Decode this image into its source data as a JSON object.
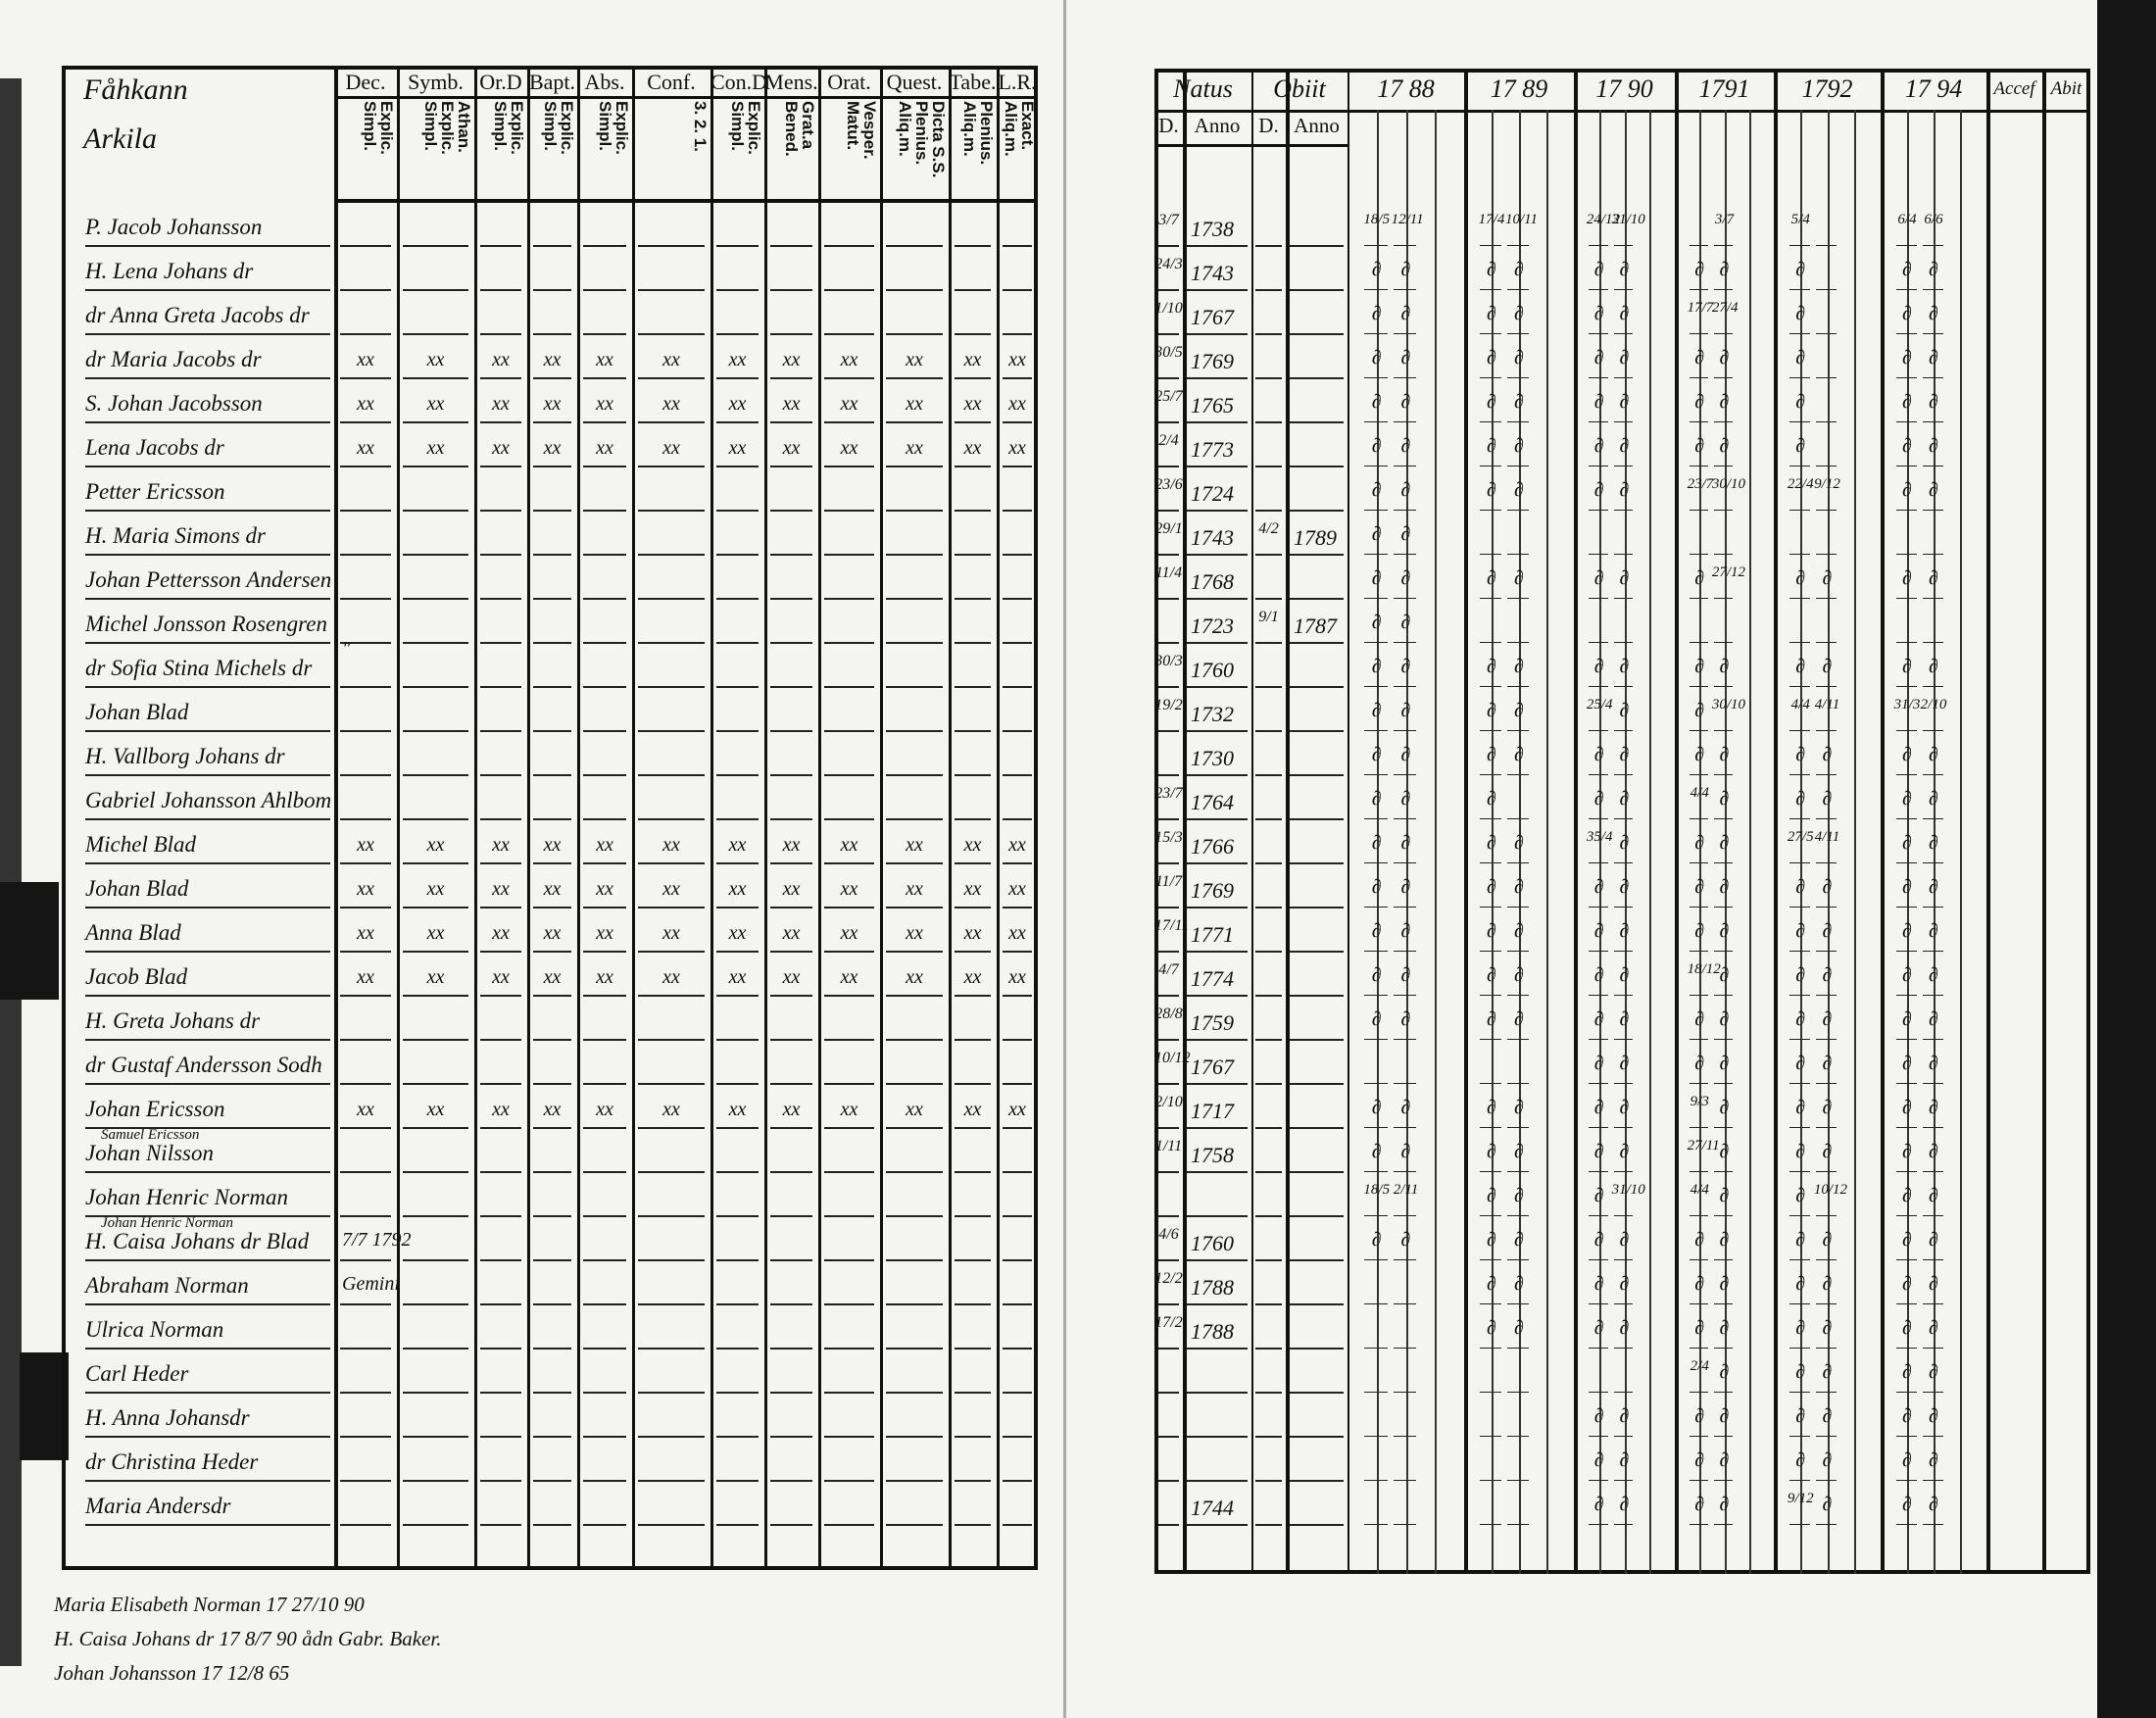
{
  "left_page": {
    "title_lines": [
      "Fåhkann",
      "Arkila"
    ],
    "columns": [
      {
        "head": "Dec.",
        "sub": "Explic. Simpl."
      },
      {
        "head": "Symb.",
        "sub": "Athan. Explic. Simpl."
      },
      {
        "head": "Or.D",
        "sub": "Explic. Simpl."
      },
      {
        "head": "Bapt.",
        "sub": "Explic. Simpl."
      },
      {
        "head": "Abs.",
        "sub": "Explic. Simpl."
      },
      {
        "head": "Conf.",
        "sub": "3. 2. 1."
      },
      {
        "head": "Con.D",
        "sub": "Explic. Simpl."
      },
      {
        "head": "Mens.",
        "sub": "Grat.a Bened."
      },
      {
        "head": "Orat.",
        "sub": "Vesper. Matut."
      },
      {
        "head": "Quest.",
        "sub": "Dicta S.S. Plenius. Aliq.m."
      },
      {
        "head": "Tabe.",
        "sub": "Plenius. Aliq.m."
      },
      {
        "head": "L.R.",
        "sub": "Exact. Aliq.m."
      }
    ],
    "rows": [
      {
        "name": "P. Jacob Johansson",
        "marks": ""
      },
      {
        "name": "H. Lena Johans dr",
        "marks": ""
      },
      {
        "name": "dr Anna Greta Jacobs dr",
        "marks": ""
      },
      {
        "name": "dr Maria Jacobs dr",
        "marks": "xx"
      },
      {
        "name": "S. Johan Jacobsson",
        "marks": "xx"
      },
      {
        "name": "Lena Jacobs dr",
        "marks": "xx"
      },
      {
        "name": "Petter Ericsson",
        "marks": ""
      },
      {
        "name": "H. Maria Simons dr",
        "marks": ""
      },
      {
        "name": "Johan Pettersson Andersen",
        "marks": ""
      },
      {
        "name": "Michel Jonsson Rosengren",
        "marks": ""
      },
      {
        "name": "dr Sofia Stina Michels dr",
        "marks": "",
        "note": "\""
      },
      {
        "name": "Johan Blad",
        "marks": ""
      },
      {
        "name": "H. Vallborg Johans dr",
        "marks": ""
      },
      {
        "name": "Gabriel Johansson Ahlbom",
        "marks": ""
      },
      {
        "name": "Michel Blad",
        "marks": "xx"
      },
      {
        "name": "Johan Blad",
        "marks": "xx"
      },
      {
        "name": "Anna Blad",
        "marks": "xx"
      },
      {
        "name": "Jacob Blad",
        "marks": "xx"
      },
      {
        "name": "H. Greta Johans dr",
        "marks": ""
      },
      {
        "name": "dr Gustaf Andersson Sodh",
        "marks": ""
      },
      {
        "name": "Johan Ericsson",
        "marks": "xx"
      },
      {
        "name": "Johan Nilsson",
        "marks": "",
        "small": "Samuel Ericsson"
      },
      {
        "name": "Johan Henric Norman",
        "marks": ""
      },
      {
        "name": "H. Caisa Johans dr Blad",
        "marks": "",
        "small": "Johan Henric Norman",
        "note": "7/7 1792"
      },
      {
        "name": "Abraham Norman",
        "marks": "",
        "note": "Gemini"
      },
      {
        "name": "Ulrica Norman",
        "marks": ""
      },
      {
        "name": "Carl Heder",
        "marks": ""
      },
      {
        "name": "H. Anna Johansdr",
        "marks": ""
      },
      {
        "name": "dr Christina Heder",
        "marks": ""
      },
      {
        "name": "Maria Andersdr",
        "marks": ""
      }
    ],
    "footer_notes": [
      "Maria Elisabeth Norman 17 27/10 90",
      "H. Caisa Johans dr 17 8/7 90 ådn Gabr. Baker.",
      "Johan Johansson 17 12/8 65"
    ]
  },
  "right_page": {
    "headers": {
      "natus": "Natus",
      "obiit": "Obiit",
      "d": "D.",
      "anno": "Anno",
      "accef": "Accef",
      "abit": "Abit"
    },
    "years": [
      "17 88",
      "17 89",
      "17 90",
      "1791",
      "1792",
      "17 94"
    ],
    "rows": [
      {
        "d": "3/7",
        "anno": "1738",
        "od": "",
        "oanno": "",
        "marks": [
          "18/5",
          "12/11",
          "17/4",
          "10/11",
          "24/12",
          "31/10",
          "",
          "3/7",
          "5/4",
          "",
          "6/4",
          "6/6"
        ]
      },
      {
        "d": "24/3",
        "anno": "1743",
        "od": "",
        "oanno": "",
        "marks": [
          "∂",
          "∂",
          "∂",
          "∂",
          "∂",
          "∂",
          "∂",
          "∂",
          "∂",
          "",
          "∂",
          "∂"
        ]
      },
      {
        "d": "1/10",
        "anno": "1767",
        "od": "",
        "oanno": "",
        "marks": [
          "∂",
          "∂",
          "∂",
          "∂",
          "∂",
          "∂",
          "17/7",
          "27/4",
          "∂",
          "",
          "∂",
          "∂"
        ]
      },
      {
        "d": "30/5",
        "anno": "1769",
        "od": "",
        "oanno": "",
        "marks": [
          "∂",
          "∂",
          "∂",
          "∂",
          "∂",
          "∂",
          "∂",
          "∂",
          "∂",
          "",
          "∂",
          "∂"
        ]
      },
      {
        "d": "25/7",
        "anno": "1765",
        "od": "",
        "oanno": "",
        "marks": [
          "∂",
          "∂",
          "∂",
          "∂",
          "∂",
          "∂",
          "∂",
          "∂",
          "∂",
          "",
          "∂",
          "∂"
        ]
      },
      {
        "d": "2/4",
        "anno": "1773",
        "od": "",
        "oanno": "",
        "marks": [
          "∂",
          "∂",
          "∂",
          "∂",
          "∂",
          "∂",
          "∂",
          "∂",
          "∂",
          "",
          "∂",
          "∂"
        ]
      },
      {
        "d": "23/6",
        "anno": "1724",
        "od": "",
        "oanno": "",
        "marks": [
          "∂",
          "∂",
          "∂",
          "∂",
          "∂",
          "∂",
          "23/7",
          "30/10",
          "22/4",
          "9/12",
          "∂",
          "∂"
        ]
      },
      {
        "d": "29/1",
        "anno": "1743",
        "od": "4/2",
        "oanno": "1789",
        "marks": [
          "∂",
          "∂",
          "",
          "",
          "",
          "",
          "",
          "",
          "",
          "",
          "",
          ""
        ]
      },
      {
        "d": "11/4",
        "anno": "1768",
        "od": "",
        "oanno": "",
        "marks": [
          "∂",
          "∂",
          "∂",
          "∂",
          "∂",
          "∂",
          "∂",
          "27/12",
          "∂",
          "∂",
          "∂",
          "∂"
        ]
      },
      {
        "d": "",
        "anno": "1723",
        "od": "9/1",
        "oanno": "1787",
        "marks": [
          "∂",
          "∂",
          "",
          "",
          "",
          "",
          "",
          "",
          "",
          "",
          "",
          ""
        ]
      },
      {
        "d": "30/3",
        "anno": "1760",
        "od": "",
        "oanno": "",
        "marks": [
          "∂",
          "∂",
          "∂",
          "∂",
          "∂",
          "∂",
          "∂",
          "∂",
          "∂",
          "∂",
          "∂",
          "∂"
        ]
      },
      {
        "d": "19/2",
        "anno": "1732",
        "od": "",
        "oanno": "",
        "marks": [
          "∂",
          "∂",
          "∂",
          "∂",
          "25/4",
          "∂",
          "∂",
          "30/10",
          "4/4",
          "4/11",
          "31/3",
          "2/10"
        ]
      },
      {
        "d": "",
        "anno": "1730",
        "od": "",
        "oanno": "",
        "marks": [
          "∂",
          "∂",
          "∂",
          "∂",
          "∂",
          "∂",
          "∂",
          "∂",
          "∂",
          "∂",
          "∂",
          "∂"
        ]
      },
      {
        "d": "23/7",
        "anno": "1764",
        "od": "",
        "oanno": "",
        "marks": [
          "∂",
          "∂",
          "∂",
          "",
          "∂",
          "∂",
          "4/4",
          "∂",
          "∂",
          "∂",
          "∂",
          "∂"
        ]
      },
      {
        "d": "15/3",
        "anno": "1766",
        "od": "",
        "oanno": "",
        "marks": [
          "∂",
          "∂",
          "∂",
          "∂",
          "35/4",
          "∂",
          "∂",
          "∂",
          "27/5",
          "4/11",
          "∂",
          "∂"
        ]
      },
      {
        "d": "11/7",
        "anno": "1769",
        "od": "",
        "oanno": "",
        "marks": [
          "∂",
          "∂",
          "∂",
          "∂",
          "∂",
          "∂",
          "∂",
          "∂",
          "∂",
          "∂",
          "∂",
          "∂"
        ]
      },
      {
        "d": "17/11",
        "anno": "1771",
        "od": "",
        "oanno": "",
        "marks": [
          "∂",
          "∂",
          "∂",
          "∂",
          "∂",
          "∂",
          "∂",
          "∂",
          "∂",
          "∂",
          "∂",
          "∂"
        ]
      },
      {
        "d": "4/7",
        "anno": "1774",
        "od": "",
        "oanno": "",
        "marks": [
          "∂",
          "∂",
          "∂",
          "∂",
          "∂",
          "∂",
          "18/12",
          "∂",
          "∂",
          "∂",
          "∂",
          "∂"
        ]
      },
      {
        "d": "28/8",
        "anno": "1759",
        "od": "",
        "oanno": "",
        "marks": [
          "∂",
          "∂",
          "∂",
          "∂",
          "∂",
          "∂",
          "∂",
          "∂",
          "∂",
          "∂",
          "∂",
          "∂"
        ]
      },
      {
        "d": "10/12",
        "anno": "1767",
        "od": "",
        "oanno": "",
        "marks": [
          "",
          "",
          "",
          "",
          "∂",
          "∂",
          "∂",
          "∂",
          "∂",
          "∂",
          "∂",
          "∂"
        ]
      },
      {
        "d": "2/10",
        "anno": "1717",
        "od": "",
        "oanno": "",
        "marks": [
          "∂",
          "∂",
          "∂",
          "∂",
          "∂",
          "∂",
          "9/3",
          "∂",
          "∂",
          "∂",
          "∂",
          "∂"
        ]
      },
      {
        "d": "1/11",
        "anno": "1758",
        "od": "",
        "oanno": "",
        "marks": [
          "∂",
          "∂",
          "∂",
          "∂",
          "∂",
          "∂",
          "27/11",
          "∂",
          "∂",
          "∂",
          "∂",
          "∂"
        ]
      },
      {
        "d": "",
        "anno": "",
        "od": "",
        "oanno": "",
        "marks": [
          "18/5",
          "2/11",
          "∂",
          "∂",
          "∂",
          "31/10",
          "4/4",
          "∂",
          "∂",
          "10/12",
          "∂",
          "∂"
        ]
      },
      {
        "d": "4/6",
        "anno": "1760",
        "od": "",
        "oanno": "",
        "marks": [
          "∂",
          "∂",
          "∂",
          "∂",
          "∂",
          "∂",
          "∂",
          "∂",
          "∂",
          "∂",
          "∂",
          "∂"
        ]
      },
      {
        "d": "12/2",
        "anno": "1788",
        "od": "",
        "oanno": "",
        "marks": [
          "",
          "",
          "∂",
          "∂",
          "∂",
          "∂",
          "∂",
          "∂",
          "∂",
          "∂",
          "∂",
          "∂"
        ]
      },
      {
        "d": "17/2",
        "anno": "1788",
        "od": "",
        "oanno": "",
        "marks": [
          "",
          "",
          "∂",
          "∂",
          "∂",
          "∂",
          "∂",
          "∂",
          "∂",
          "∂",
          "∂",
          "∂"
        ]
      },
      {
        "d": "",
        "anno": "",
        "od": "",
        "oanno": "",
        "marks": [
          "",
          "",
          "",
          "",
          "",
          "",
          "2/4",
          "∂",
          "∂",
          "∂",
          "∂",
          "∂"
        ]
      },
      {
        "d": "",
        "anno": "",
        "od": "",
        "oanno": "",
        "marks": [
          "",
          "",
          "",
          "",
          "∂",
          "∂",
          "∂",
          "∂",
          "∂",
          "∂",
          "∂",
          "∂"
        ]
      },
      {
        "d": "",
        "anno": "",
        "od": "",
        "oanno": "",
        "marks": [
          "",
          "",
          "",
          "",
          "∂",
          "∂",
          "∂",
          "∂",
          "∂",
          "∂",
          "∂",
          "∂"
        ]
      },
      {
        "d": "",
        "anno": "1744",
        "od": "",
        "oanno": "",
        "marks": [
          "",
          "",
          "",
          "",
          "∂",
          "∂",
          "∂",
          "∂",
          "9/12",
          "∂",
          "∂",
          "∂"
        ]
      }
    ]
  }
}
